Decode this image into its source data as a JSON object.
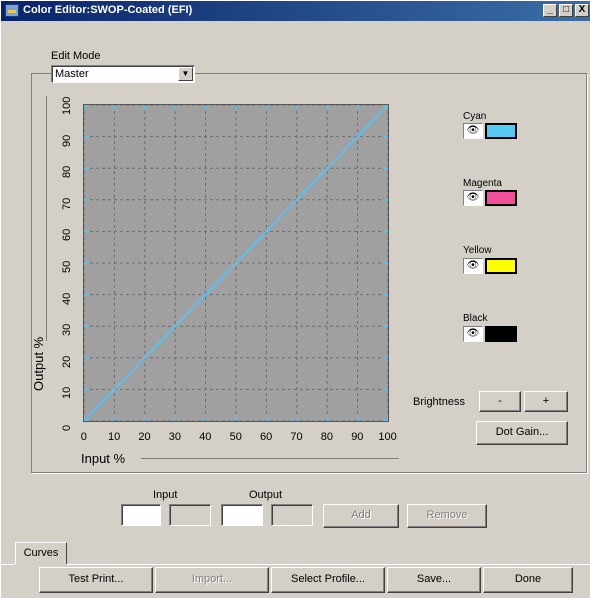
{
  "window": {
    "title": "Color Editor:SWOP-Coated (EFI)",
    "controls": [
      "_",
      "□",
      "X"
    ]
  },
  "edit_mode": {
    "label": "Edit Mode",
    "value": "Master"
  },
  "chart_data": {
    "type": "line",
    "xlabel": "Input %",
    "ylabel": "Output %",
    "xlim": [
      0,
      100
    ],
    "ylim": [
      0,
      100
    ],
    "x_ticks": [
      "0",
      "10",
      "20",
      "30",
      "40",
      "50",
      "60",
      "70",
      "80",
      "90",
      "100"
    ],
    "y_ticks": [
      "0",
      "10",
      "20",
      "30",
      "40",
      "50",
      "60",
      "70",
      "80",
      "90",
      "100"
    ],
    "grid": true,
    "background": "#a0a0a0",
    "line_color": "#5bc0f0",
    "x": [
      0,
      100
    ],
    "y": [
      0,
      100
    ]
  },
  "channels": [
    {
      "name": "Cyan",
      "color": "#56c8f4",
      "icon": "eye-icon"
    },
    {
      "name": "Magenta",
      "color": "#f0509a",
      "icon": "eye-icon"
    },
    {
      "name": "Yellow",
      "color": "#ffff00",
      "icon": "eye-icon"
    },
    {
      "name": "Black",
      "color": "#000000",
      "icon": "eye-icon"
    }
  ],
  "brightness": {
    "label": "Brightness",
    "minus": "-",
    "plus": "+"
  },
  "dot_gain_button": "Dot Gain...",
  "point_entry": {
    "input_label": "Input",
    "output_label": "Output",
    "input_value": "",
    "output_value": "",
    "add_button": "Add",
    "remove_button": "Remove"
  },
  "tabs": [
    "Curves"
  ],
  "bottom_buttons": {
    "test_print": "Test Print...",
    "import": "Import...",
    "select_profile": "Select Profile...",
    "save": "Save...",
    "done": "Done"
  }
}
